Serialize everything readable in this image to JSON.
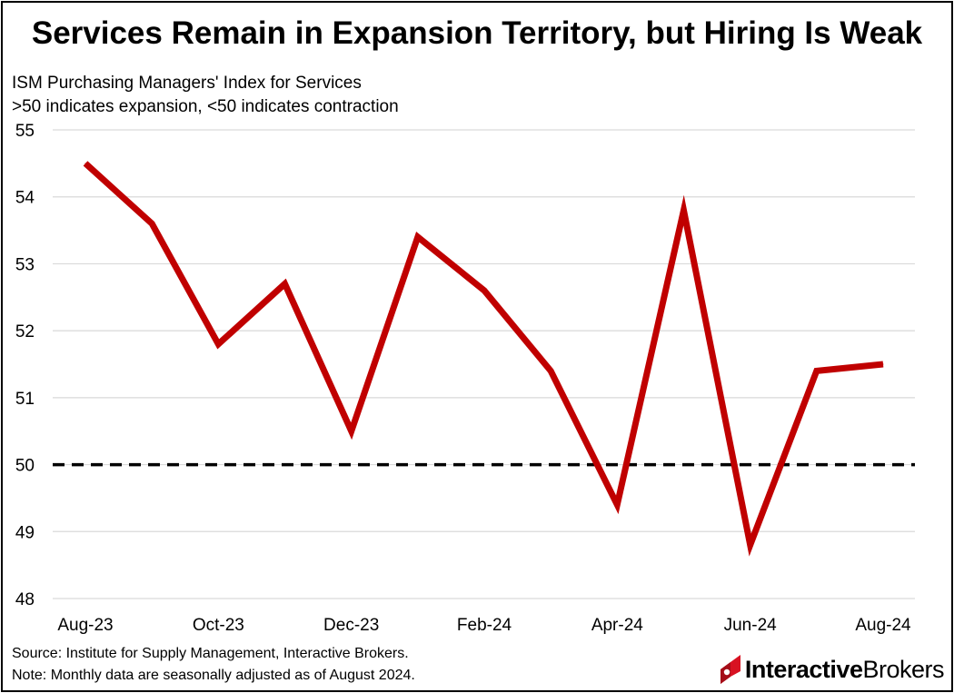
{
  "chart_data": {
    "type": "line",
    "title": "Services Remain in Expansion Territory, but Hiring Is Weak",
    "subtitle_lines": [
      "ISM Purchasing Managers' Index for Services",
      ">50 indicates expansion, <50 indicates contraction"
    ],
    "x": [
      "Aug-23",
      "Sep-23",
      "Oct-23",
      "Nov-23",
      "Dec-23",
      "Jan-24",
      "Feb-24",
      "Mar-24",
      "Apr-24",
      "May-24",
      "Jun-24",
      "Jul-24",
      "Aug-24"
    ],
    "x_tick_labels": [
      "Aug-23",
      "Oct-23",
      "Dec-23",
      "Feb-24",
      "Apr-24",
      "Jun-24",
      "Aug-24"
    ],
    "series": [
      {
        "values": [
          54.5,
          53.6,
          51.8,
          52.7,
          50.5,
          53.4,
          52.6,
          51.4,
          49.4,
          53.8,
          48.8,
          51.4,
          51.5
        ],
        "color": "#c00000"
      }
    ],
    "reference_line": {
      "value": 50,
      "style": "dashed",
      "color": "#000000"
    },
    "ylim": [
      48,
      55
    ],
    "y_ticks": [
      48,
      49,
      50,
      51,
      52,
      53,
      54,
      55
    ],
    "grid": true,
    "legend": "none"
  },
  "notes": {
    "source": "Source: Institute for Supply Management, Interactive Brokers.",
    "note": "Note: Monthly data are seasonally adjusted as of August 2024."
  },
  "logo": {
    "part1": "Interactive",
    "part2": "Brokers",
    "color": "#d81222"
  }
}
